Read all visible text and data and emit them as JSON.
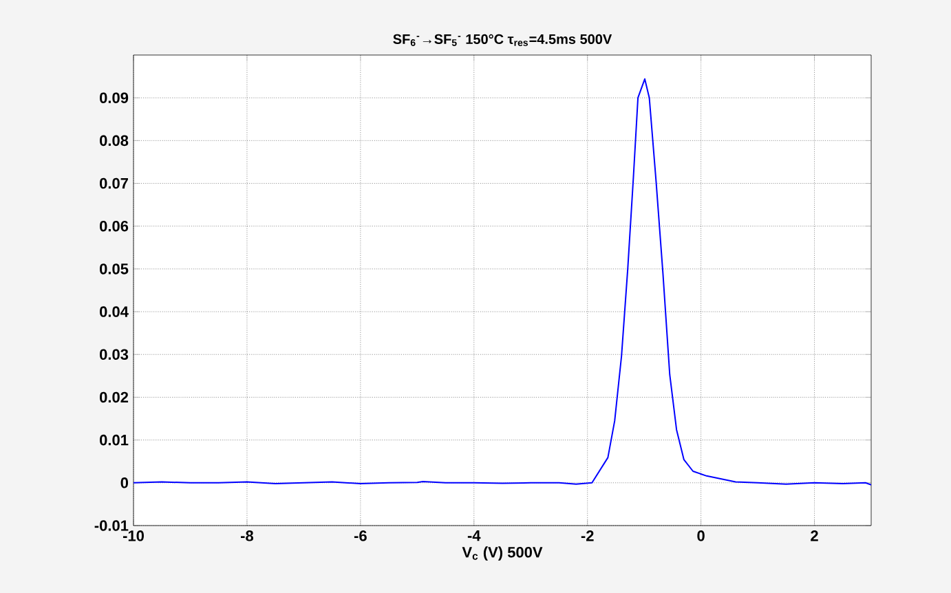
{
  "chart_data": {
    "type": "line",
    "title": "SF$_{6}$$^{-}$→SF$_{5}$$^{-}$ 150°C    τ$_{res}$=4.5ms  500V",
    "xlabel": "V$_{c}$ (V) 500V",
    "xlim": [
      -10,
      3
    ],
    "ylim": [
      -0.01,
      0.1
    ],
    "xticks": [
      -10,
      -8,
      -6,
      -4,
      -2,
      0,
      2
    ],
    "yticks": [
      -0.01,
      0,
      0.01,
      0.02,
      0.03,
      0.04,
      0.05,
      0.06,
      0.07,
      0.08,
      0.09
    ],
    "grid": true,
    "line_style": "solid",
    "marker": "none",
    "series": [
      {
        "color": "#0000ff",
        "x": [
          -10,
          -9.5,
          -9,
          -8.5,
          -8,
          -7.5,
          -7,
          -6.5,
          -6,
          -5.5,
          -5,
          -4.9,
          -4.5,
          -4,
          -3.5,
          -3,
          -2.5,
          -2.2,
          -1.92,
          -1.64,
          -1.52,
          -1.4,
          -1.29,
          -1.19,
          -1.11,
          -0.99,
          -0.91,
          -0.79,
          -0.67,
          -0.55,
          -0.43,
          -0.3,
          -0.14,
          0.1,
          0.61,
          1,
          1.5,
          2,
          2.5,
          2.9,
          3
        ],
        "values": [
          0,
          0.0002,
          0,
          0,
          0.0002,
          -0.0002,
          0,
          0.0002,
          -0.0002,
          0,
          0.0001,
          0.0003,
          0,
          0,
          -0.0001,
          0,
          0,
          -0.0003,
          0,
          0.0059,
          0.0145,
          0.0296,
          0.05,
          0.0715,
          0.09,
          0.0944,
          0.09,
          0.0704,
          0.049,
          0.0253,
          0.0124,
          0.0054,
          0.0027,
          0.0016,
          0.0002,
          0,
          -0.0003,
          0,
          -0.0002,
          0,
          -0.0005
        ]
      }
    ]
  }
}
